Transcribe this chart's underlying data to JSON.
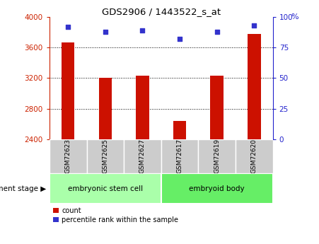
{
  "title": "GDS2906 / 1443522_s_at",
  "samples": [
    "GSM72623",
    "GSM72625",
    "GSM72627",
    "GSM72617",
    "GSM72619",
    "GSM72620"
  ],
  "counts": [
    3670,
    3200,
    3230,
    2640,
    3230,
    3780
  ],
  "percentiles": [
    92,
    88,
    89,
    82,
    88,
    93
  ],
  "ylim_left": [
    2400,
    4000
  ],
  "ylim_right": [
    0,
    100
  ],
  "yticks_left": [
    2400,
    2800,
    3200,
    3600,
    4000
  ],
  "yticks_right": [
    0,
    25,
    50,
    75,
    100
  ],
  "bar_color": "#cc1100",
  "dot_color": "#3333cc",
  "grid_color": "#000000",
  "bg_color": "#ffffff",
  "plot_bg": "#ffffff",
  "groups": [
    {
      "label": "embryonic stem cell",
      "start": 0,
      "end": 3,
      "color": "#aaffaa"
    },
    {
      "label": "embryoid body",
      "start": 3,
      "end": 6,
      "color": "#66ee66"
    }
  ],
  "group_label": "development stage",
  "legend_count_label": "count",
  "legend_pct_label": "percentile rank within the sample",
  "left_yaxis_color": "#cc2200",
  "right_yaxis_color": "#2222cc",
  "tick_label_area_color": "#cccccc",
  "figsize": [
    4.51,
    3.45
  ],
  "dpi": 100
}
